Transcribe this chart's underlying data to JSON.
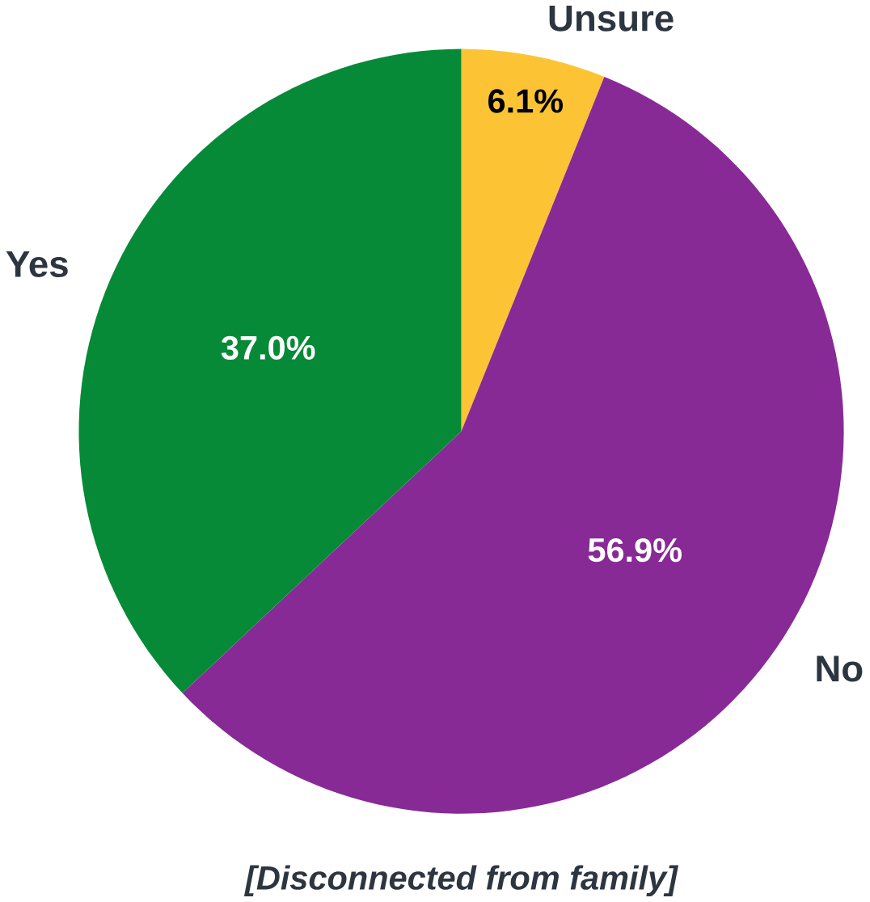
{
  "chart_data": {
    "type": "pie",
    "title": "[Disconnected from family]",
    "categories": [
      "Unsure",
      "No",
      "Yes"
    ],
    "values": [
      6.1,
      56.9,
      37.0
    ],
    "colors": [
      "#fcc434",
      "#872a96",
      "#078a38"
    ],
    "value_labels": [
      "6.1%",
      "56.9%",
      "37.0%"
    ]
  }
}
